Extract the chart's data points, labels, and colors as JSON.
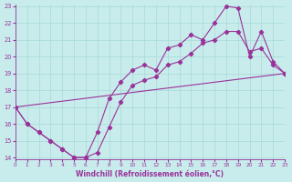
{
  "xlabel": "Windchill (Refroidissement éolien,°C)",
  "xlim": [
    0,
    23
  ],
  "ylim": [
    13.9,
    23.1
  ],
  "xticks": [
    0,
    1,
    2,
    3,
    4,
    5,
    6,
    7,
    8,
    9,
    10,
    11,
    12,
    13,
    14,
    15,
    16,
    17,
    18,
    19,
    20,
    21,
    22,
    23
  ],
  "yticks": [
    14,
    15,
    16,
    17,
    18,
    19,
    20,
    21,
    22,
    23
  ],
  "bg_color": "#c8ecec",
  "grid_color": "#a8d8d8",
  "line_color": "#993399",
  "line1_x": [
    0,
    1,
    2,
    3,
    4,
    5,
    6,
    7,
    8,
    9,
    10,
    11,
    12,
    13,
    14,
    15,
    16,
    17,
    18,
    19,
    20,
    21,
    22,
    23
  ],
  "line1_y": [
    17,
    16,
    15.5,
    15.0,
    14.5,
    14.0,
    14.0,
    15.5,
    17.5,
    18.5,
    19.2,
    19.5,
    19.2,
    20.5,
    20.7,
    21.3,
    21.0,
    22.0,
    23.0,
    22.9,
    20.0,
    21.5,
    19.7,
    19.0
  ],
  "line2_x": [
    0,
    1,
    2,
    3,
    4,
    5,
    6,
    7,
    8,
    9,
    10,
    11,
    12,
    13,
    14,
    15,
    16,
    17,
    18,
    19,
    20,
    21,
    22,
    23
  ],
  "line2_y": [
    17,
    16,
    15.5,
    15.0,
    14.5,
    14.0,
    14.0,
    14.3,
    15.8,
    17.3,
    18.3,
    18.6,
    18.8,
    19.5,
    19.7,
    20.2,
    20.8,
    21.0,
    21.5,
    21.5,
    20.3,
    20.5,
    19.5,
    19.0
  ],
  "line3_x": [
    0,
    23
  ],
  "line3_y": [
    17,
    19.0
  ]
}
